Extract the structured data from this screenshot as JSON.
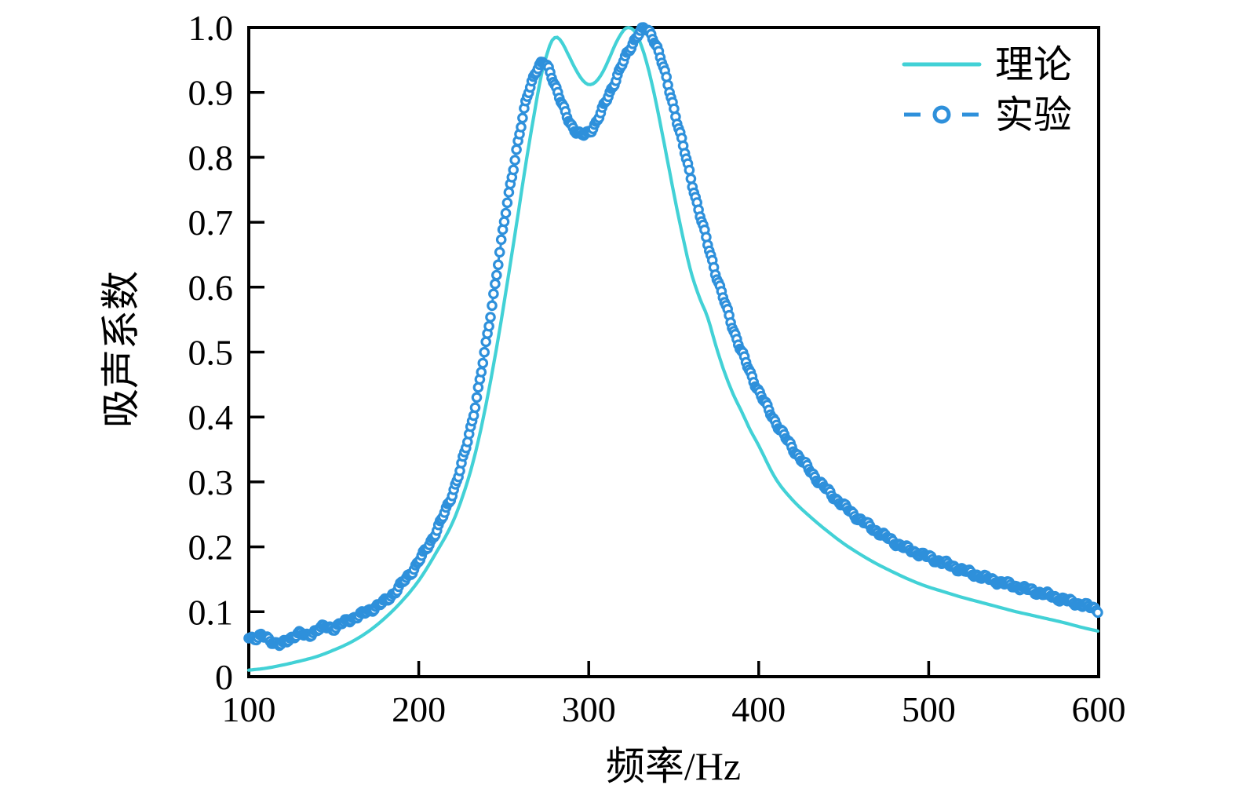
{
  "figure": {
    "background": "#ffffff",
    "axis_color": "#000000",
    "text_color": "#000000"
  },
  "chart_data": {
    "type": "line",
    "title": "",
    "xlabel": "频率/Hz",
    "ylabel": "吸声系数",
    "xlim": [
      100,
      600
    ],
    "ylim": [
      0,
      1.0
    ],
    "grid": false,
    "legend_position": "upper right",
    "x_ticks": [
      100,
      200,
      300,
      400,
      500,
      600
    ],
    "x_tick_labels": [
      "100",
      "200",
      "300",
      "400",
      "500",
      "600"
    ],
    "y_ticks": [
      0,
      0.1,
      0.2,
      0.3,
      0.4,
      0.5,
      0.6,
      0.7,
      0.8,
      0.9,
      1.0
    ],
    "y_tick_labels": [
      "0",
      "0.1",
      "0.2",
      "0.3",
      "0.4",
      "0.5",
      "0.6",
      "0.7",
      "0.8",
      "0.9",
      "1.0"
    ],
    "series": [
      {
        "name": "理论",
        "style": "solid-line",
        "color": "#42D1D6",
        "points": [
          [
            100,
            0.01
          ],
          [
            110,
            0.013
          ],
          [
            120,
            0.018
          ],
          [
            130,
            0.024
          ],
          [
            140,
            0.031
          ],
          [
            150,
            0.041
          ],
          [
            160,
            0.053
          ],
          [
            170,
            0.069
          ],
          [
            180,
            0.09
          ],
          [
            190,
            0.116
          ],
          [
            200,
            0.148
          ],
          [
            210,
            0.19
          ],
          [
            220,
            0.238
          ],
          [
            228,
            0.295
          ],
          [
            234,
            0.352
          ],
          [
            240,
            0.425
          ],
          [
            246,
            0.51
          ],
          [
            252,
            0.605
          ],
          [
            258,
            0.705
          ],
          [
            263,
            0.79
          ],
          [
            268,
            0.868
          ],
          [
            272,
            0.925
          ],
          [
            275,
            0.955
          ],
          [
            278,
            0.978
          ],
          [
            281,
            0.985
          ],
          [
            284,
            0.978
          ],
          [
            288,
            0.958
          ],
          [
            292,
            0.937
          ],
          [
            296,
            0.92
          ],
          [
            300,
            0.912
          ],
          [
            304,
            0.916
          ],
          [
            308,
            0.93
          ],
          [
            312,
            0.952
          ],
          [
            316,
            0.976
          ],
          [
            320,
            0.994
          ],
          [
            323,
            1.0
          ],
          [
            327,
            0.994
          ],
          [
            331,
            0.972
          ],
          [
            335,
            0.937
          ],
          [
            339,
            0.892
          ],
          [
            343,
            0.84
          ],
          [
            347,
            0.786
          ],
          [
            351,
            0.732
          ],
          [
            355,
            0.682
          ],
          [
            360,
            0.625
          ],
          [
            365,
            0.585
          ],
          [
            370,
            0.553
          ],
          [
            375,
            0.508
          ],
          [
            380,
            0.468
          ],
          [
            385,
            0.435
          ],
          [
            390,
            0.408
          ],
          [
            395,
            0.38
          ],
          [
            400,
            0.356
          ],
          [
            410,
            0.305
          ],
          [
            420,
            0.272
          ],
          [
            430,
            0.247
          ],
          [
            440,
            0.225
          ],
          [
            450,
            0.205
          ],
          [
            460,
            0.188
          ],
          [
            470,
            0.173
          ],
          [
            480,
            0.16
          ],
          [
            490,
            0.148
          ],
          [
            500,
            0.138
          ],
          [
            510,
            0.13
          ],
          [
            520,
            0.122
          ],
          [
            530,
            0.115
          ],
          [
            540,
            0.108
          ],
          [
            550,
            0.101
          ],
          [
            560,
            0.095
          ],
          [
            570,
            0.089
          ],
          [
            580,
            0.083
          ],
          [
            590,
            0.076
          ],
          [
            600,
            0.07
          ]
        ]
      },
      {
        "name": "实验",
        "style": "dashed-line-open-circle-markers",
        "color": "#2E90DB",
        "marker_fill": "#ffffff",
        "points": [
          [
            100,
            0.063
          ],
          [
            104,
            0.059
          ],
          [
            108,
            0.062
          ],
          [
            112,
            0.058
          ],
          [
            116,
            0.051
          ],
          [
            119,
            0.049
          ],
          [
            122,
            0.055
          ],
          [
            126,
            0.062
          ],
          [
            130,
            0.066
          ],
          [
            134,
            0.063
          ],
          [
            138,
            0.069
          ],
          [
            142,
            0.074
          ],
          [
            146,
            0.077
          ],
          [
            150,
            0.075
          ],
          [
            155,
            0.082
          ],
          [
            160,
            0.089
          ],
          [
            165,
            0.094
          ],
          [
            170,
            0.101
          ],
          [
            175,
            0.108
          ],
          [
            180,
            0.116
          ],
          [
            185,
            0.128
          ],
          [
            190,
            0.143
          ],
          [
            195,
            0.159
          ],
          [
            200,
            0.178
          ],
          [
            205,
            0.199
          ],
          [
            210,
            0.223
          ],
          [
            215,
            0.251
          ],
          [
            220,
            0.284
          ],
          [
            225,
            0.325
          ],
          [
            230,
            0.378
          ],
          [
            235,
            0.443
          ],
          [
            240,
            0.52
          ],
          [
            245,
            0.607
          ],
          [
            250,
            0.695
          ],
          [
            255,
            0.775
          ],
          [
            260,
            0.845
          ],
          [
            264,
            0.895
          ],
          [
            268,
            0.928
          ],
          [
            271,
            0.941
          ],
          [
            274,
            0.944
          ],
          [
            277,
            0.933
          ],
          [
            281,
            0.906
          ],
          [
            285,
            0.876
          ],
          [
            289,
            0.853
          ],
          [
            293,
            0.84
          ],
          [
            297,
            0.834
          ],
          [
            301,
            0.841
          ],
          [
            305,
            0.858
          ],
          [
            310,
            0.885
          ],
          [
            315,
            0.915
          ],
          [
            320,
            0.945
          ],
          [
            325,
            0.971
          ],
          [
            329,
            0.99
          ],
          [
            333,
            0.997
          ],
          [
            337,
            0.988
          ],
          [
            341,
            0.964
          ],
          [
            345,
            0.927
          ],
          [
            350,
            0.877
          ],
          [
            355,
            0.823
          ],
          [
            360,
            0.769
          ],
          [
            365,
            0.716
          ],
          [
            370,
            0.666
          ],
          [
            375,
            0.619
          ],
          [
            380,
            0.576
          ],
          [
            385,
            0.536
          ],
          [
            390,
            0.5
          ],
          [
            395,
            0.468
          ],
          [
            400,
            0.44
          ],
          [
            405,
            0.415
          ],
          [
            410,
            0.392
          ],
          [
            415,
            0.371
          ],
          [
            420,
            0.352
          ],
          [
            425,
            0.334
          ],
          [
            430,
            0.318
          ],
          [
            435,
            0.302
          ],
          [
            440,
            0.288
          ],
          [
            445,
            0.275
          ],
          [
            450,
            0.263
          ],
          [
            455,
            0.252
          ],
          [
            460,
            0.241
          ],
          [
            465,
            0.232
          ],
          [
            470,
            0.223
          ],
          [
            475,
            0.215
          ],
          [
            480,
            0.207
          ],
          [
            485,
            0.2
          ],
          [
            490,
            0.194
          ],
          [
            495,
            0.189
          ],
          [
            500,
            0.184
          ],
          [
            510,
            0.174
          ],
          [
            520,
            0.164
          ],
          [
            530,
            0.155
          ],
          [
            540,
            0.147
          ],
          [
            550,
            0.14
          ],
          [
            560,
            0.133
          ],
          [
            570,
            0.126
          ],
          [
            580,
            0.118
          ],
          [
            590,
            0.111
          ],
          [
            600,
            0.103
          ]
        ]
      }
    ]
  }
}
